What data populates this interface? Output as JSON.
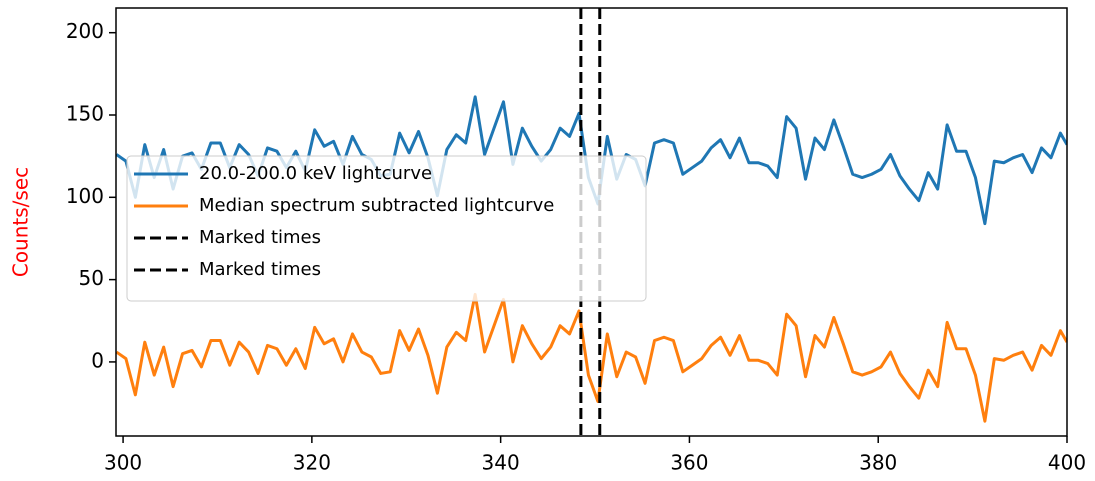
{
  "chart_data": {
    "type": "line",
    "y_label": "Counts/sec",
    "y_label_color": "#ff0000",
    "x": [
      299.3,
      300.3,
      301.3,
      302.3,
      303.3,
      304.3,
      305.3,
      306.3,
      307.3,
      308.3,
      309.3,
      310.3,
      311.3,
      312.3,
      313.3,
      314.3,
      315.3,
      316.3,
      317.3,
      318.3,
      319.3,
      320.3,
      321.3,
      322.3,
      323.3,
      324.3,
      325.3,
      326.3,
      327.3,
      328.3,
      329.3,
      330.3,
      331.3,
      332.3,
      333.3,
      334.3,
      335.3,
      336.3,
      337.3,
      338.3,
      339.3,
      340.3,
      341.3,
      342.3,
      343.3,
      344.3,
      345.3,
      346.3,
      347.3,
      348.3,
      349.3,
      350.3,
      351.3,
      352.3,
      353.3,
      354.3,
      355.3,
      356.3,
      357.3,
      358.3,
      359.3,
      360.3,
      361.3,
      362.3,
      363.3,
      364.3,
      365.3,
      366.3,
      367.3,
      368.3,
      369.3,
      370.3,
      371.3,
      372.3,
      373.3,
      374.3,
      375.3,
      376.3,
      377.3,
      378.3,
      379.3,
      380.3,
      381.3,
      382.3,
      383.3,
      384.3,
      385.3,
      386.3,
      387.3,
      388.3,
      389.3,
      390.3,
      391.3,
      392.3,
      393.3,
      394.3,
      395.3,
      396.3,
      397.3,
      398.3,
      399.3,
      400
    ],
    "series": [
      {
        "name": "20.0-200.0 keV lightcurve",
        "color": "#1f77b4",
        "values": [
          126,
          122,
          100,
          132,
          112,
          129,
          105,
          125,
          127,
          117,
          133,
          133,
          118,
          132,
          126,
          113,
          130,
          128,
          118,
          128,
          116,
          141,
          131,
          134,
          120,
          137,
          126,
          123,
          113,
          114,
          139,
          127,
          140,
          124,
          101,
          129,
          138,
          133,
          161,
          126,
          142,
          158,
          120,
          142,
          131,
          122,
          129,
          142,
          137,
          151,
          112,
          96,
          137,
          111,
          126,
          123,
          107,
          133,
          135,
          133,
          114,
          118,
          122,
          130,
          135,
          124,
          136,
          121,
          121,
          119,
          112,
          149,
          142,
          111,
          136,
          129,
          147,
          131,
          114,
          112,
          114,
          117,
          126,
          113,
          105,
          98,
          115,
          105,
          144,
          128,
          128,
          112,
          84,
          122,
          121,
          124,
          126,
          115,
          130,
          124,
          139,
          132
        ]
      },
      {
        "name": "Median spectrum subtracted lightcurve",
        "color": "#ff7f0e",
        "values": [
          6,
          2,
          -20,
          12,
          -8,
          9,
          -15,
          5,
          7,
          -3,
          13,
          13,
          -2,
          12,
          6,
          -7,
          10,
          8,
          -2,
          8,
          -4,
          21,
          11,
          14,
          0,
          17,
          6,
          3,
          -7,
          -6,
          19,
          7,
          20,
          4,
          -19,
          9,
          18,
          13,
          41,
          6,
          22,
          38,
          0,
          22,
          11,
          2,
          9,
          22,
          17,
          31,
          -8,
          -24,
          17,
          -9,
          6,
          3,
          -13,
          13,
          15,
          13,
          -6,
          -2,
          2,
          10,
          15,
          4,
          16,
          1,
          1,
          -1,
          -8,
          29,
          22,
          -9,
          16,
          9,
          27,
          11,
          -6,
          -8,
          -6,
          -3,
          6,
          -7,
          -15,
          -22,
          -5,
          -15,
          24,
          8,
          8,
          -8,
          -36,
          2,
          1,
          4,
          6,
          -5,
          10,
          4,
          19,
          12
        ]
      }
    ],
    "vlines": [
      {
        "name": "Marked times",
        "x": 348.5,
        "color": "#000000"
      },
      {
        "name": "Marked times",
        "x": 350.5,
        "color": "#000000"
      }
    ],
    "xlim": [
      299.25,
      400
    ],
    "xticks": [
      300,
      320,
      340,
      360,
      380,
      400
    ],
    "ylim": [
      -45,
      215
    ],
    "yticks": [
      0,
      50,
      100,
      150,
      200
    ],
    "legend": "upper-left"
  }
}
